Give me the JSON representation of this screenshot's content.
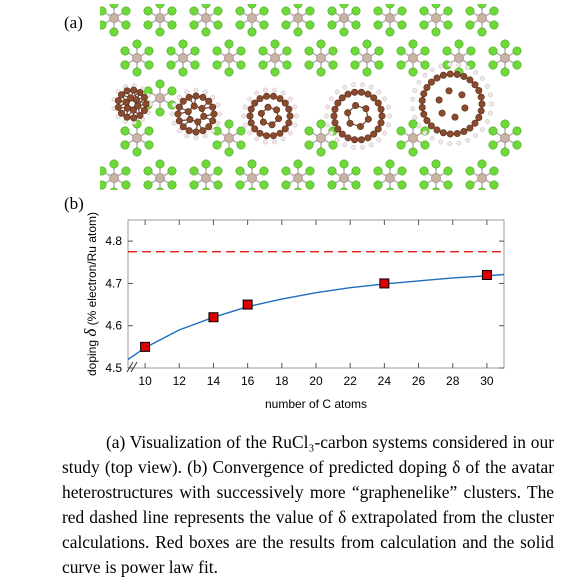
{
  "figure": {
    "panel_a_label": "(a)",
    "panel_b_label": "(b)"
  },
  "chart_data": {
    "type": "scatter",
    "xlabel": "number of C atoms",
    "ylabel_prefix": "doping",
    "ylabel_symbol": "δ",
    "ylabel_units": "(% electron/Ru atom)",
    "x_ticks": [
      10,
      12,
      14,
      16,
      18,
      20,
      22,
      24,
      26,
      28,
      30
    ],
    "y_ticks": [
      4.5,
      4.6,
      4.7,
      4.8
    ],
    "xlim": [
      9,
      31
    ],
    "ylim": [
      4.5,
      4.85
    ],
    "series": [
      {
        "x": [
          10,
          14,
          16,
          24,
          30
        ],
        "y": [
          4.55,
          4.62,
          4.65,
          4.7,
          4.72
        ],
        "marker": "square",
        "color": "#dd0000"
      }
    ],
    "fit_curve": {
      "color": "#1f6fbf",
      "x": [
        9,
        10,
        12,
        14,
        16,
        18,
        20,
        22,
        24,
        26,
        28,
        30,
        31
      ],
      "y": [
        4.52,
        4.548,
        4.59,
        4.62,
        4.645,
        4.663,
        4.678,
        4.69,
        4.699,
        4.706,
        4.713,
        4.718,
        4.721
      ]
    },
    "extrapolated_value": {
      "y": 4.775,
      "color": "#dd0000",
      "style": "dashed"
    }
  },
  "caption": {
    "text": "(a) Visualization of the RuCl₃-carbon systems considered in our study (top view). (b) Convergence of predicted doping δ of the avatar heterostructures with successively more “graphenelike” clusters. The red dashed line represents the value of δ extrapolated from the cluster calculations. Red boxes are the results from calculation and the solid curve is power law fit."
  },
  "colors": {
    "chlorine": "#6fd83a",
    "ruthenium": "#c8b2a8",
    "carbon": "#8a4a2e",
    "hydrogen": "#f0e6e6"
  }
}
